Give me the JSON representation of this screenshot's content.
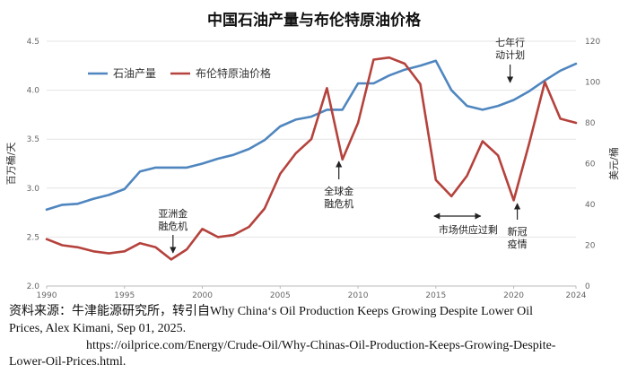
{
  "title": "中国石油产量与布伦特原油价格",
  "source": {
    "line1": "资料来源：牛津能源研究所，转引自Why China‘s Oil Production Keeps Growing Despite Lower Oil",
    "line2": "Prices, Alex Kimani, Sep 01, 2025.",
    "line3": "https://oilprice.com/Energy/Crude-Oil/Why-Chinas-Oil-Production-Keeps-Growing-Despite-",
    "line4": "Lower-Oil-Prices.html."
  },
  "chart_data": {
    "type": "line",
    "x": [
      1990,
      1991,
      1992,
      1993,
      1994,
      1995,
      1996,
      1997,
      1998,
      1999,
      2000,
      2001,
      2002,
      2003,
      2004,
      2005,
      2006,
      2007,
      2008,
      2009,
      2010,
      2011,
      2012,
      2013,
      2014,
      2015,
      2016,
      2017,
      2018,
      2019,
      2020,
      2021,
      2022,
      2023,
      2024
    ],
    "xticks": [
      "1990",
      "1995",
      "2000",
      "2005",
      "2010",
      "2015",
      "2020",
      "2024"
    ],
    "xtick_values": [
      1990,
      1995,
      2000,
      2005,
      2010,
      2015,
      2020,
      2024
    ],
    "xlim": [
      1990,
      2024
    ],
    "series": [
      {
        "name": "石油产量",
        "axis": "left",
        "color": "#4f86bf",
        "values": [
          2.78,
          2.83,
          2.84,
          2.89,
          2.93,
          2.99,
          3.17,
          3.21,
          3.21,
          3.21,
          3.25,
          3.3,
          3.34,
          3.4,
          3.49,
          3.63,
          3.7,
          3.73,
          3.8,
          3.8,
          4.07,
          4.07,
          4.15,
          4.21,
          4.25,
          4.3,
          4.0,
          3.84,
          3.8,
          3.84,
          3.9,
          3.99,
          4.1,
          4.2,
          4.27
        ]
      },
      {
        "name": "布伦特原油价格",
        "axis": "right",
        "color": "#b5423c",
        "values": [
          23,
          20,
          19,
          17,
          16,
          17,
          21,
          19,
          13,
          18,
          28,
          24,
          25,
          29,
          38,
          55,
          65,
          72,
          97,
          62,
          80,
          111,
          112,
          109,
          99,
          52,
          44,
          54,
          71,
          64,
          42,
          70,
          100,
          82,
          80
        ]
      }
    ],
    "y_left": {
      "label": "百万桶/天",
      "lim": [
        2.0,
        4.5
      ],
      "ticks": [
        "2.0",
        "2.5",
        "3.0",
        "3.5",
        "4.0",
        "4.5"
      ],
      "tick_values": [
        2.0,
        2.5,
        3.0,
        3.5,
        4.0,
        4.5
      ]
    },
    "y_right": {
      "label": "美元/桶",
      "lim": [
        0,
        120
      ],
      "ticks": [
        "0",
        "20",
        "40",
        "60",
        "80",
        "100",
        "120"
      ],
      "tick_values": [
        0,
        20,
        40,
        60,
        80,
        100,
        120
      ]
    },
    "legend": "top-left",
    "annotations": [
      {
        "lines": [
          "亚洲金",
          "融危机"
        ],
        "x": 1998,
        "arrow": "down"
      },
      {
        "lines": [
          "全球金",
          "融危机"
        ],
        "x": 2009,
        "arrow": "up"
      },
      {
        "lines": [
          "市场供应过剩"
        ],
        "x_from": 2015,
        "x_to": 2018,
        "arrow": "both"
      },
      {
        "lines": [
          "新冠",
          "疫情"
        ],
        "x": 2020,
        "arrow": "up"
      },
      {
        "lines": [
          "七年行",
          "动计划"
        ],
        "x": 2020,
        "arrow": "down"
      }
    ]
  }
}
